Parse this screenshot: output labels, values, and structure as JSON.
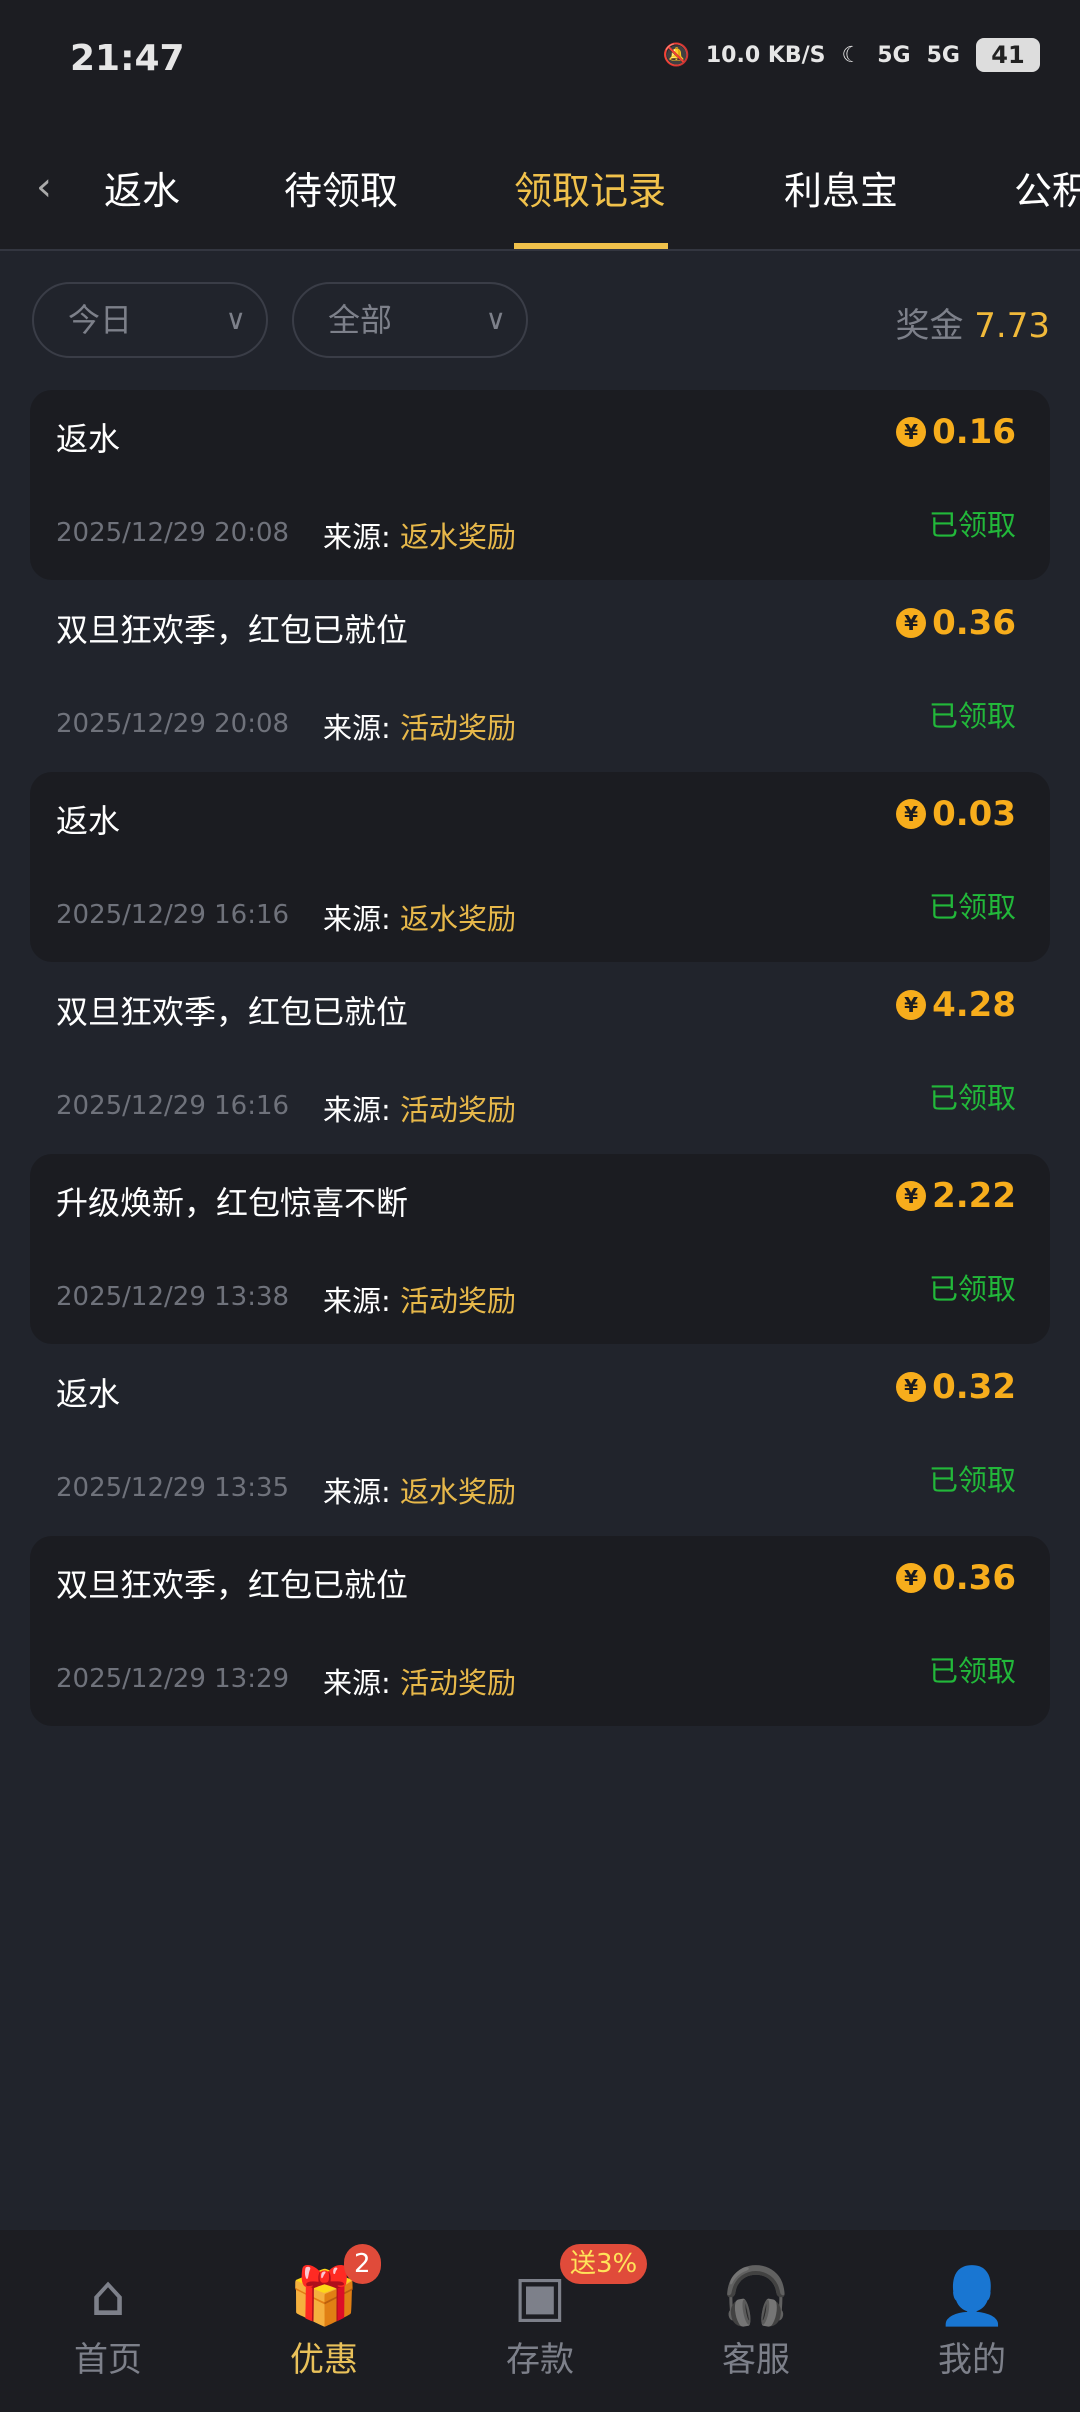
{
  "status_bar": {
    "time": "21:47",
    "net_speed": "10.0 KB/S",
    "network": "5G",
    "battery": "41"
  },
  "tabs": [
    {
      "label": "返水"
    },
    {
      "label": "待领取"
    },
    {
      "label": "领取记录",
      "active": true
    },
    {
      "label": "利息宝"
    },
    {
      "label": "公积"
    }
  ],
  "filters": {
    "date": "今日",
    "type": "全部"
  },
  "bonus": {
    "label": "奖金",
    "value": "7.73"
  },
  "records": [
    {
      "title": "返水",
      "amount": "0.16",
      "time": "2025/12/29 20:08",
      "source_label": "来源:",
      "source": "返水奖励",
      "status": "已领取"
    },
    {
      "title": "双旦狂欢季，红包已就位",
      "amount": "0.36",
      "time": "2025/12/29 20:08",
      "source_label": "来源:",
      "source": "活动奖励",
      "status": "已领取"
    },
    {
      "title": "返水",
      "amount": "0.03",
      "time": "2025/12/29 16:16",
      "source_label": "来源:",
      "source": "返水奖励",
      "status": "已领取"
    },
    {
      "title": "双旦狂欢季，红包已就位",
      "amount": "4.28",
      "time": "2025/12/29 16:16",
      "source_label": "来源:",
      "source": "活动奖励",
      "status": "已领取"
    },
    {
      "title": "升级焕新，红包惊喜不断",
      "amount": "2.22",
      "time": "2025/12/29 13:38",
      "source_label": "来源:",
      "source": "活动奖励",
      "status": "已领取"
    },
    {
      "title": "返水",
      "amount": "0.32",
      "time": "2025/12/29 13:35",
      "source_label": "来源:",
      "source": "返水奖励",
      "status": "已领取"
    },
    {
      "title": "双旦狂欢季，红包已就位",
      "amount": "0.36",
      "time": "2025/12/29 13:29",
      "source_label": "来源:",
      "source": "活动奖励",
      "status": "已领取"
    }
  ],
  "nav": [
    {
      "label": "首页",
      "icon": "home-icon"
    },
    {
      "label": "优惠",
      "icon": "gift-icon",
      "badge": "2",
      "active": true
    },
    {
      "label": "存款",
      "icon": "wallet-icon",
      "badge": "送3%"
    },
    {
      "label": "客服",
      "icon": "headset-icon"
    },
    {
      "label": "我的",
      "icon": "user-icon"
    }
  ],
  "colors": {
    "accent": "#f0c14b",
    "amount": "#f7ad1c",
    "status": "#22b83a",
    "badge": "#e04b3a"
  }
}
